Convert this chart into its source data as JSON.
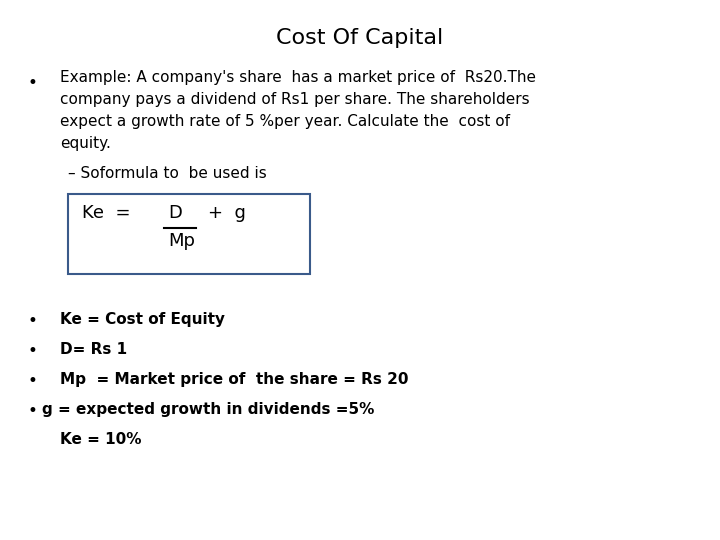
{
  "title": "Cost Of Capital",
  "title_fontsize": 16,
  "background_color": "#ffffff",
  "text_color": "#000000",
  "bullet1_lines": [
    "Example: A company's share  has a market price of  Rs​20.The",
    "company pays a dividend of Rs1 per share. The shareholders",
    "expect a growth rate of 5 %per year. Calculate the  cost of",
    "equity."
  ],
  "sub_bullet": "– Soformula to  be used is",
  "formula_ke": "Ke  =",
  "formula_d": "D",
  "formula_plus_g": "+  g",
  "formula_mp": "Mp",
  "box_edge_color": "#3a5a8a",
  "bottom_bullets": [
    {
      "bullet": true,
      "text": "Ke = Cost of Equity",
      "bold": true
    },
    {
      "bullet": true,
      "text": "D= Rs 1",
      "bold": true
    },
    {
      "bullet": true,
      "text": "Mp  = Market price of  the share = Rs 20",
      "bold": true
    },
    {
      "bullet": true,
      "text": "g = expected growth in dividends =5%",
      "bold": true
    }
  ],
  "result_text": "  Ke = 10%"
}
